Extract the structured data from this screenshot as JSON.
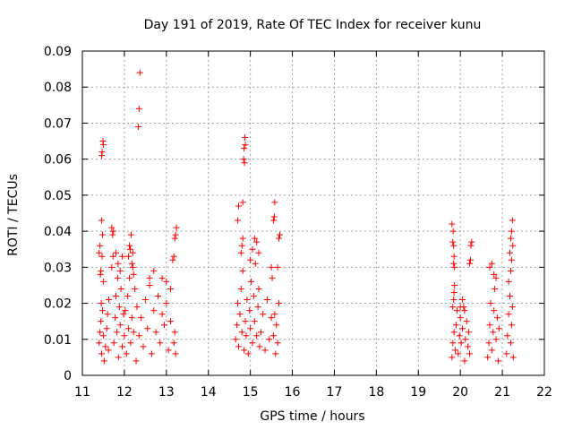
{
  "chart_data": {
    "type": "scatter",
    "title": "Day 191 of 2019, Rate Of TEC Index for receiver kunu",
    "xlabel": "GPS time / hours",
    "ylabel": "ROTI / TECUs",
    "xlim": [
      11,
      22
    ],
    "ylim": [
      0,
      0.09
    ],
    "x_ticks": [
      "11",
      "12",
      "13",
      "14",
      "15",
      "16",
      "17",
      "18",
      "19",
      "20",
      "21",
      "22"
    ],
    "y_ticks": [
      "0",
      "0.01",
      "0.02",
      "0.03",
      "0.04",
      "0.05",
      "0.06",
      "0.07",
      "0.08",
      "0.09"
    ],
    "grid": true,
    "marker": "+",
    "color": "#ff0000",
    "series": [
      {
        "name": "ROTI",
        "points": [
          [
            11.4,
            0.009
          ],
          [
            11.42,
            0.012
          ],
          [
            11.44,
            0.015
          ],
          [
            11.45,
            0.02
          ],
          [
            11.46,
            0.006
          ],
          [
            11.48,
            0.018
          ],
          [
            11.5,
            0.011
          ],
          [
            11.52,
            0.004
          ],
          [
            11.4,
            0.034
          ],
          [
            11.42,
            0.036
          ],
          [
            11.44,
            0.029
          ],
          [
            11.46,
            0.043
          ],
          [
            11.48,
            0.039
          ],
          [
            11.5,
            0.026
          ],
          [
            11.43,
            0.028
          ],
          [
            11.47,
            0.033
          ],
          [
            11.46,
            0.061
          ],
          [
            11.47,
            0.062
          ],
          [
            11.49,
            0.065
          ],
          [
            11.5,
            0.064
          ],
          [
            11.55,
            0.008
          ],
          [
            11.58,
            0.013
          ],
          [
            11.6,
            0.017
          ],
          [
            11.62,
            0.007
          ],
          [
            11.63,
            0.021
          ],
          [
            11.7,
            0.041
          ],
          [
            11.72,
            0.039
          ],
          [
            11.74,
            0.04
          ],
          [
            11.7,
            0.03
          ],
          [
            11.73,
            0.033
          ],
          [
            11.75,
            0.009
          ],
          [
            11.78,
            0.016
          ],
          [
            11.8,
            0.022
          ],
          [
            11.82,
            0.012
          ],
          [
            11.84,
            0.027
          ],
          [
            11.86,
            0.005
          ],
          [
            11.88,
            0.019
          ],
          [
            11.9,
            0.014
          ],
          [
            11.92,
            0.024
          ],
          [
            11.95,
            0.008
          ],
          [
            11.98,
            0.017
          ],
          [
            11.8,
            0.034
          ],
          [
            11.85,
            0.031
          ],
          [
            11.9,
            0.029
          ],
          [
            11.95,
            0.033
          ],
          [
            12.0,
            0.011
          ],
          [
            12.02,
            0.018
          ],
          [
            12.05,
            0.006
          ],
          [
            12.08,
            0.022
          ],
          [
            12.1,
            0.013
          ],
          [
            12.12,
            0.027
          ],
          [
            12.15,
            0.009
          ],
          [
            12.18,
            0.016
          ],
          [
            12.2,
            0.03
          ],
          [
            12.22,
            0.012
          ],
          [
            12.25,
            0.024
          ],
          [
            12.28,
            0.004
          ],
          [
            12.3,
            0.019
          ],
          [
            12.1,
            0.033
          ],
          [
            12.12,
            0.036
          ],
          [
            12.14,
            0.035
          ],
          [
            12.16,
            0.039
          ],
          [
            12.18,
            0.031
          ],
          [
            12.2,
            0.034
          ],
          [
            12.22,
            0.028
          ],
          [
            12.33,
            0.069
          ],
          [
            12.35,
            0.074
          ],
          [
            12.37,
            0.084
          ],
          [
            12.35,
            0.011
          ],
          [
            12.4,
            0.016
          ],
          [
            12.45,
            0.008
          ],
          [
            12.5,
            0.021
          ],
          [
            12.55,
            0.013
          ],
          [
            12.6,
            0.025
          ],
          [
            12.65,
            0.006
          ],
          [
            12.7,
            0.018
          ],
          [
            12.75,
            0.012
          ],
          [
            12.8,
            0.022
          ],
          [
            12.85,
            0.009
          ],
          [
            12.9,
            0.017
          ],
          [
            12.95,
            0.014
          ],
          [
            13.0,
            0.02
          ],
          [
            13.05,
            0.007
          ],
          [
            13.1,
            0.015
          ],
          [
            12.6,
            0.027
          ],
          [
            12.7,
            0.029
          ],
          [
            12.9,
            0.027
          ],
          [
            13.0,
            0.026
          ],
          [
            13.1,
            0.024
          ],
          [
            13.15,
            0.032
          ],
          [
            13.18,
            0.033
          ],
          [
            13.2,
            0.038
          ],
          [
            13.22,
            0.039
          ],
          [
            13.24,
            0.041
          ],
          [
            13.18,
            0.009
          ],
          [
            13.2,
            0.012
          ],
          [
            13.22,
            0.006
          ],
          [
            14.65,
            0.01
          ],
          [
            14.68,
            0.014
          ],
          [
            14.7,
            0.02
          ],
          [
            14.72,
            0.008
          ],
          [
            14.75,
            0.017
          ],
          [
            14.78,
            0.024
          ],
          [
            14.8,
            0.012
          ],
          [
            14.82,
            0.029
          ],
          [
            14.7,
            0.043
          ],
          [
            14.72,
            0.047
          ],
          [
            14.8,
            0.036
          ],
          [
            14.78,
            0.034
          ],
          [
            14.82,
            0.038
          ],
          [
            14.82,
            0.048
          ],
          [
            14.84,
            0.06
          ],
          [
            14.86,
            0.059
          ],
          [
            14.85,
            0.063
          ],
          [
            14.87,
            0.066
          ],
          [
            14.88,
            0.064
          ],
          [
            14.85,
            0.007
          ],
          [
            14.88,
            0.015
          ],
          [
            14.9,
            0.011
          ],
          [
            14.92,
            0.021
          ],
          [
            14.95,
            0.006
          ],
          [
            14.98,
            0.018
          ],
          [
            15.0,
            0.013
          ],
          [
            15.02,
            0.026
          ],
          [
            15.05,
            0.009
          ],
          [
            15.08,
            0.022
          ],
          [
            15.1,
            0.015
          ],
          [
            15.12,
            0.031
          ],
          [
            15.15,
            0.011
          ],
          [
            15.18,
            0.019
          ],
          [
            15.2,
            0.024
          ],
          [
            15.22,
            0.008
          ],
          [
            15.0,
            0.032
          ],
          [
            15.05,
            0.035
          ],
          [
            15.1,
            0.038
          ],
          [
            15.15,
            0.037
          ],
          [
            15.2,
            0.034
          ],
          [
            15.25,
            0.012
          ],
          [
            15.3,
            0.017
          ],
          [
            15.35,
            0.007
          ],
          [
            15.4,
            0.021
          ],
          [
            15.45,
            0.01
          ],
          [
            15.5,
            0.016
          ],
          [
            15.5,
            0.03
          ],
          [
            15.52,
            0.027
          ],
          [
            15.55,
            0.043
          ],
          [
            15.57,
            0.044
          ],
          [
            15.58,
            0.048
          ],
          [
            15.55,
            0.011
          ],
          [
            15.58,
            0.017
          ],
          [
            15.6,
            0.006
          ],
          [
            15.62,
            0.014
          ],
          [
            15.65,
            0.009
          ],
          [
            15.68,
            0.02
          ],
          [
            15.65,
            0.03
          ],
          [
            15.68,
            0.038
          ],
          [
            15.7,
            0.039
          ],
          [
            19.8,
            0.042
          ],
          [
            19.82,
            0.037
          ],
          [
            19.84,
            0.036
          ],
          [
            19.83,
            0.04
          ],
          [
            19.85,
            0.033
          ],
          [
            19.84,
            0.031
          ],
          [
            19.86,
            0.03
          ],
          [
            19.82,
            0.019
          ],
          [
            19.84,
            0.021
          ],
          [
            19.85,
            0.023
          ],
          [
            19.86,
            0.025
          ],
          [
            19.8,
            0.005
          ],
          [
            19.82,
            0.009
          ],
          [
            19.85,
            0.012
          ],
          [
            19.88,
            0.007
          ],
          [
            19.9,
            0.014
          ],
          [
            19.92,
            0.018
          ],
          [
            19.95,
            0.006
          ],
          [
            19.98,
            0.011
          ],
          [
            20.0,
            0.016
          ],
          [
            20.02,
            0.009
          ],
          [
            20.05,
            0.013
          ],
          [
            20.08,
            0.019
          ],
          [
            20.1,
            0.004
          ],
          [
            20.12,
            0.01
          ],
          [
            20.15,
            0.015
          ],
          [
            20.18,
            0.008
          ],
          [
            20.2,
            0.012
          ],
          [
            20.22,
            0.006
          ],
          [
            20.0,
            0.019
          ],
          [
            20.05,
            0.021
          ],
          [
            20.1,
            0.018
          ],
          [
            20.22,
            0.031
          ],
          [
            20.24,
            0.032
          ],
          [
            20.25,
            0.036
          ],
          [
            20.27,
            0.037
          ],
          [
            20.65,
            0.005
          ],
          [
            20.68,
            0.009
          ],
          [
            20.7,
            0.014
          ],
          [
            20.72,
            0.02
          ],
          [
            20.75,
            0.007
          ],
          [
            20.78,
            0.012
          ],
          [
            20.8,
            0.018
          ],
          [
            20.82,
            0.024
          ],
          [
            20.85,
            0.01
          ],
          [
            20.88,
            0.016
          ],
          [
            20.9,
            0.004
          ],
          [
            20.92,
            0.013
          ],
          [
            20.7,
            0.03
          ],
          [
            20.75,
            0.031
          ],
          [
            20.8,
            0.028
          ],
          [
            20.85,
            0.027
          ],
          [
            21.1,
            0.006
          ],
          [
            21.12,
            0.011
          ],
          [
            21.15,
            0.017
          ],
          [
            21.18,
            0.022
          ],
          [
            21.2,
            0.009
          ],
          [
            21.22,
            0.014
          ],
          [
            21.24,
            0.019
          ],
          [
            21.26,
            0.005
          ],
          [
            21.15,
            0.026
          ],
          [
            21.2,
            0.029
          ],
          [
            21.22,
            0.032
          ],
          [
            21.18,
            0.034
          ],
          [
            21.2,
            0.038
          ],
          [
            21.22,
            0.04
          ],
          [
            21.24,
            0.043
          ],
          [
            21.25,
            0.036
          ]
        ]
      }
    ]
  }
}
